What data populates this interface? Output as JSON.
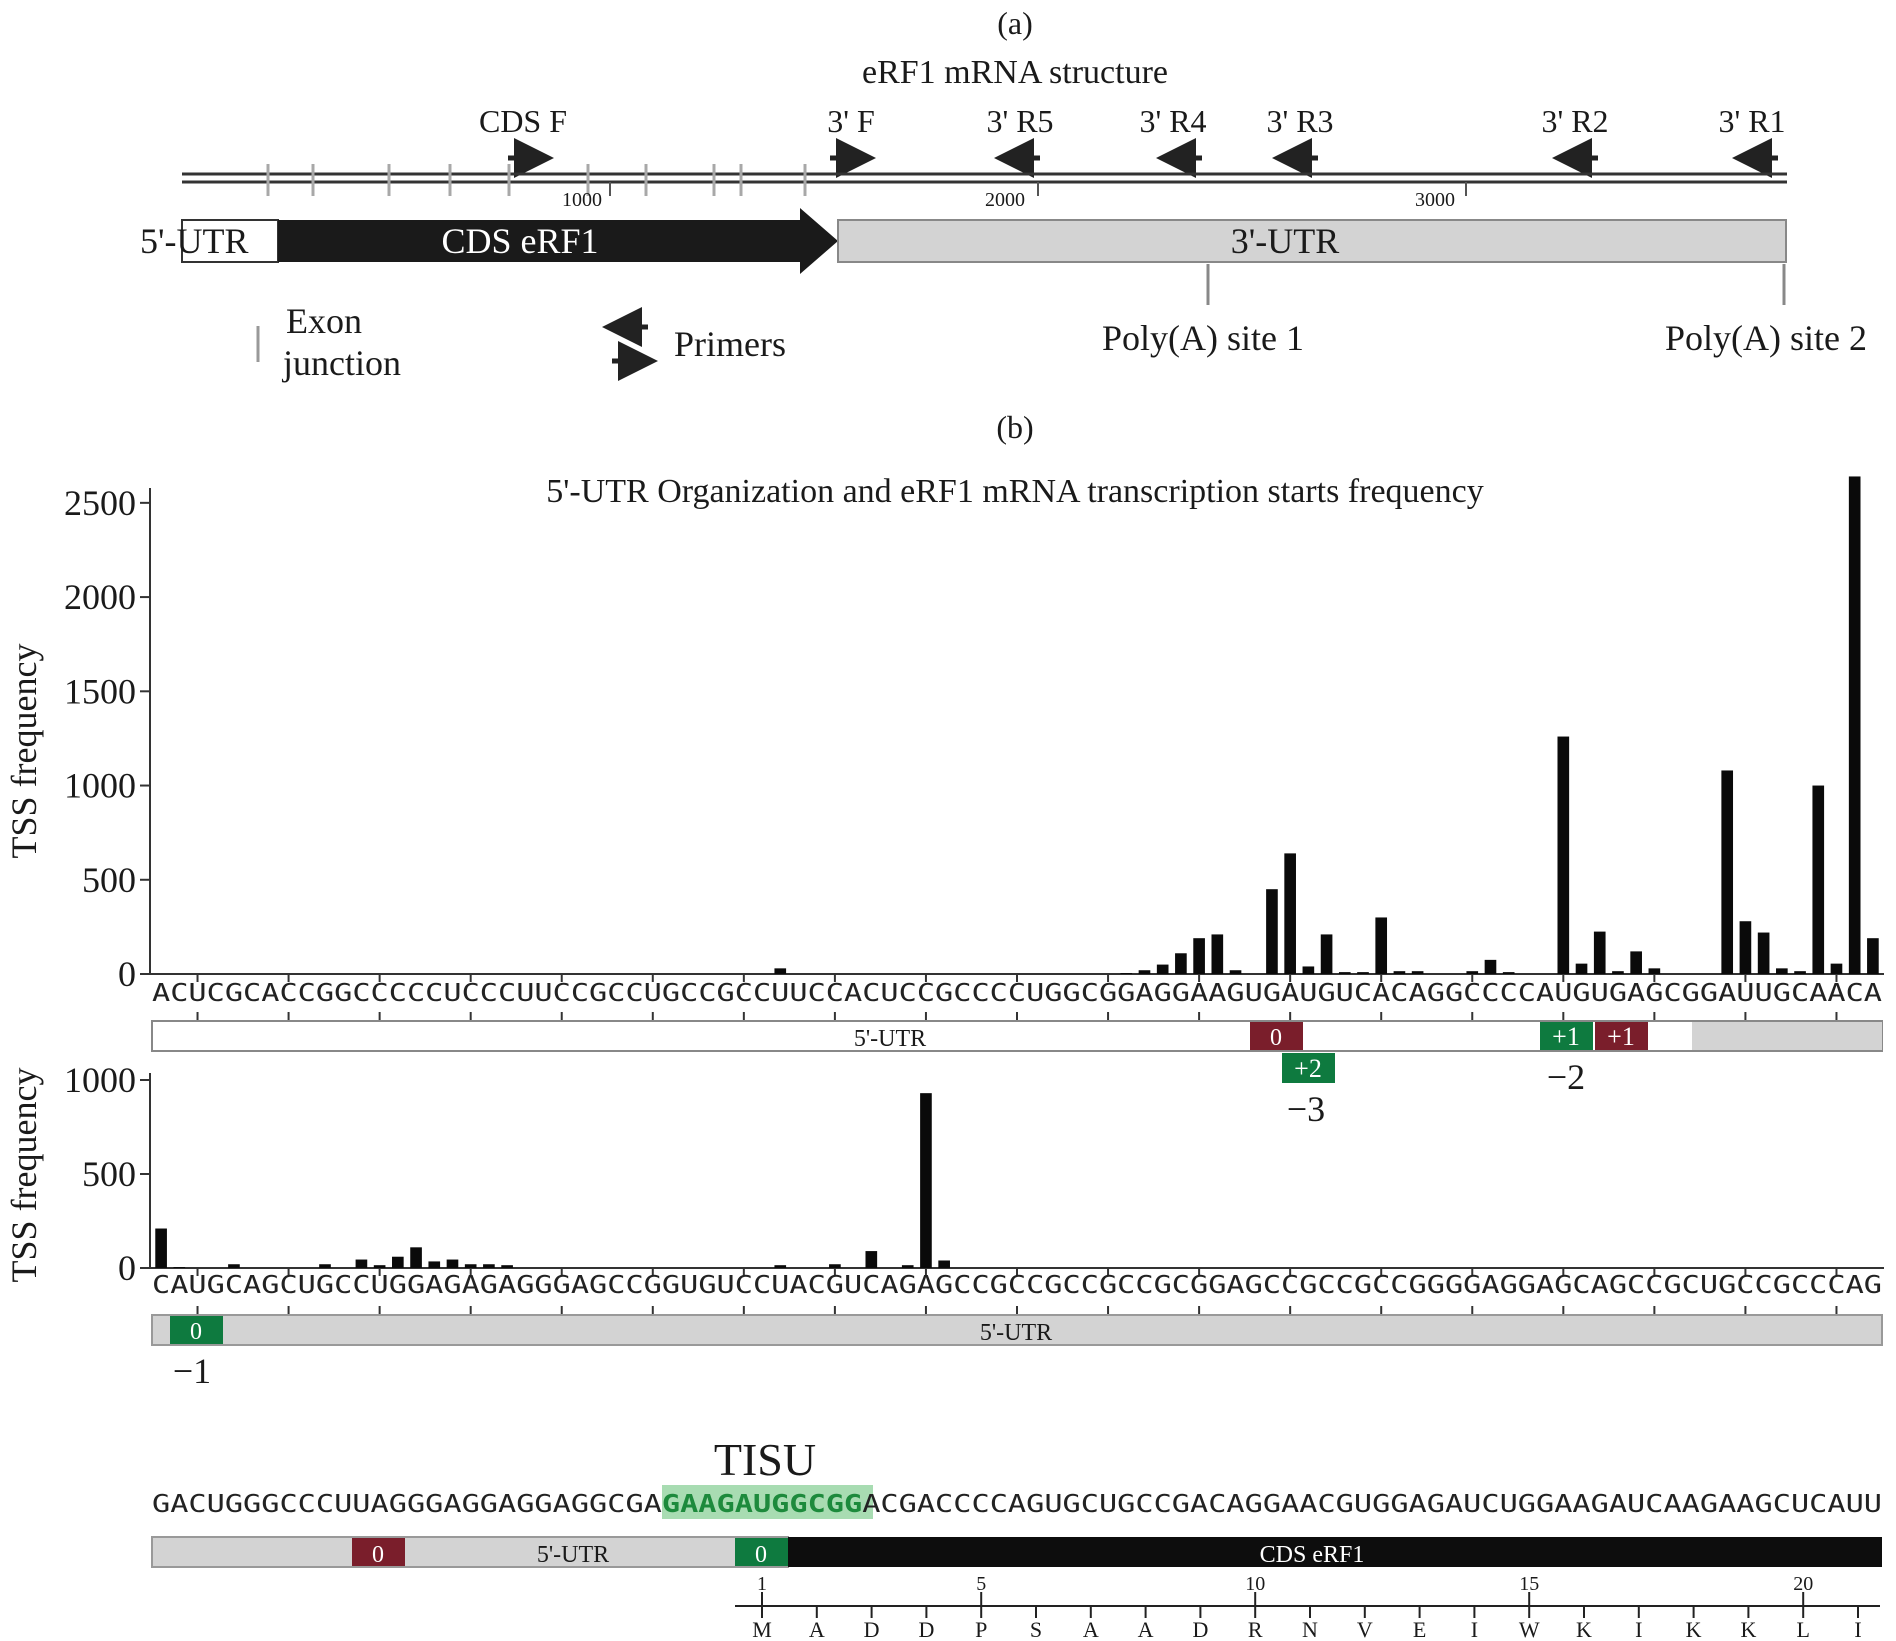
{
  "panel_a": {
    "label": "(a)",
    "title": "eRF1 mRNA structure",
    "primers": [
      {
        "label": "CDS F",
        "dir": "right"
      },
      {
        "label": "3' F",
        "dir": "right"
      },
      {
        "label": "3' R5",
        "dir": "left"
      },
      {
        "label": "3' R4",
        "dir": "left"
      },
      {
        "label": "3' R3",
        "dir": "left"
      },
      {
        "label": "3' R2",
        "dir": "left"
      },
      {
        "label": "3' R1",
        "dir": "left"
      }
    ],
    "scale_ticks": [
      "1000",
      "2000",
      "3000"
    ],
    "regions": {
      "utr5": "5'-UTR",
      "cds": "CDS  eRF1",
      "utr3": "3'-UTR"
    },
    "legend": {
      "exon_line1": "Exon",
      "exon_line2": "junction",
      "primers": "Primers"
    },
    "polya": [
      "Poly(A) site 1",
      "Poly(A) site 2"
    ]
  },
  "panel_b": {
    "label": "(b)",
    "title": "5'-UTR Organization and eRF1 mRNA transcription starts frequency",
    "ylabel": "TSS frequency",
    "track1": {
      "yticks": [
        "2500",
        "2000",
        "1500",
        "1000",
        "500",
        "0"
      ],
      "sequence": "ACUCGCACCGGCCCCCUCCCUUCCGCCUGCCGCCUUCCACUCCGCCCCUGGCGGAGGAAGUGAUGUCACAGGCCCCAUGUGAGCGGAUUGCAACA",
      "region_label": "5'-UTR",
      "badges": [
        {
          "text": "0",
          "color": "#7a1e2b"
        },
        {
          "text": "+2",
          "color": "#0e7a3f"
        },
        {
          "text": "+1",
          "color": "#0e7a3f"
        },
        {
          "text": "+1",
          "color": "#7a1e2b"
        }
      ],
      "notes": [
        "−3",
        "−2"
      ]
    },
    "track2": {
      "yticks": [
        "1000",
        "500",
        "0"
      ],
      "sequence": "CAUGCAGCUGCCUGGAGAGAGGGAGCCGGUGUCCUACGUCAGAGCCGCCGCCGCCGCGGAGCCGCCGCCGGGGAGGAGCAGCCGCUGCCGCCCAG",
      "region_label": "5'-UTR",
      "badge": {
        "text": "0",
        "color": "#0e7a3f"
      },
      "note": "−1"
    },
    "track3": {
      "tisu_label": "TISU",
      "sequence_pre": "GACUGGGCCCUUAGGGAGGAGGAGGCGA",
      "sequence_tisu": "GAAGAUGGCGG",
      "sequence_post": "ACGACCCCAGUGCUGCCGACAGGAACGUGGAGAUCUGGAAGAUCAAGAAGCUCAUU",
      "utr_label": "5'-UTR",
      "cds_label": "CDS eRF1",
      "badges": [
        {
          "text": "0",
          "color": "#7a1e2b"
        },
        {
          "text": "0",
          "color": "#0e7a3f"
        }
      ],
      "aa_ticks": [
        "1",
        "5",
        "10",
        "15",
        "20"
      ],
      "amino_acids": [
        "M",
        "A",
        "D",
        "D",
        "P",
        "S",
        "A",
        "A",
        "D",
        "R",
        "N",
        "V",
        "E",
        "I",
        "W",
        "K",
        "I",
        "K",
        "K",
        "L",
        "I"
      ]
    }
  },
  "chart_data": [
    {
      "type": "bar",
      "title": "5'-UTR Organization and eRF1 mRNA transcription starts frequency",
      "ylabel": "TSS frequency",
      "ylim": [
        0,
        2600
      ],
      "categories": "ACUCGCACCGGCCCCCUCCCUUCCGCCUGCCGCCUUCCACUCCGCCCCUGGCGGAGGAAGUGAUGUCACAGGCCCCAUGUGAGCGGAUUGCAACA",
      "values": [
        0,
        0,
        0,
        0,
        0,
        0,
        0,
        0,
        0,
        0,
        0,
        0,
        0,
        0,
        0,
        0,
        0,
        0,
        0,
        0,
        0,
        0,
        0,
        0,
        0,
        0,
        0,
        0,
        0,
        0,
        0,
        0,
        0,
        0,
        30,
        0,
        0,
        0,
        0,
        0,
        0,
        0,
        0,
        0,
        0,
        0,
        0,
        0,
        0,
        0,
        0,
        0,
        0,
        5,
        20,
        50,
        110,
        190,
        210,
        20,
        0,
        450,
        640,
        40,
        210,
        10,
        10,
        300,
        15,
        15,
        0,
        0,
        15,
        75,
        10,
        0,
        0,
        1260,
        55,
        225,
        15,
        120,
        30,
        0,
        0,
        0,
        1080,
        280,
        220,
        30,
        15,
        1000,
        55,
        2640,
        190,
        0,
        65
      ]
    },
    {
      "type": "bar",
      "ylabel": "TSS frequency",
      "ylim": [
        0,
        1000
      ],
      "categories": "CAUGCAGCUGCCUGGAGAGAGGGAGCCGGUGUCCUACGUCAGAGCCGCCGCCGCCGCGGAGCCGCCGCCGGGGAGGAGCAGCCGCUGCCGCCCAG",
      "values": [
        210,
        5,
        0,
        0,
        20,
        0,
        0,
        0,
        0,
        20,
        0,
        45,
        15,
        60,
        110,
        35,
        45,
        20,
        20,
        15,
        0,
        0,
        0,
        0,
        0,
        0,
        0,
        0,
        0,
        0,
        0,
        0,
        0,
        0,
        15,
        0,
        0,
        20,
        0,
        90,
        0,
        15,
        930,
        40,
        0,
        0,
        0,
        0,
        0,
        0,
        0,
        0,
        0,
        0,
        0,
        0,
        0,
        0,
        0,
        0,
        0,
        0,
        0,
        0,
        0,
        0,
        0,
        0,
        0,
        0,
        0,
        0,
        0,
        0,
        0,
        0,
        0,
        0,
        0,
        0,
        0,
        0,
        0,
        0,
        0,
        0,
        0,
        0,
        0,
        0,
        0,
        0,
        0,
        0,
        0,
        0
      ]
    }
  ]
}
